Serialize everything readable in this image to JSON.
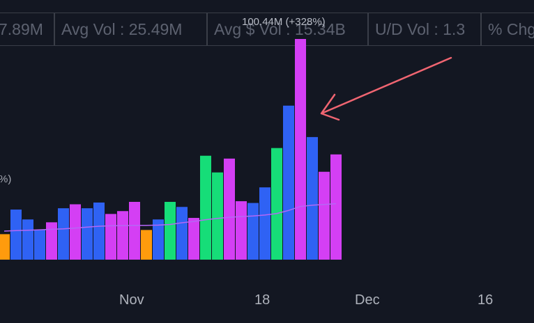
{
  "stats_bar": [
    {
      "text": "7.89M"
    },
    {
      "text": "Avg Vol : 25.49M"
    },
    {
      "text": "Avg $ Vol : 15.34B"
    },
    {
      "text": "U/D Vol : 1.3"
    },
    {
      "text": "% Chg"
    }
  ],
  "annotations": {
    "peak_label": "100.44M (+328%)",
    "left_partial": "%)"
  },
  "colors": {
    "background": "#131722",
    "green": "#16dd78",
    "blue": "#2f62f4",
    "magenta": "#d43ff4",
    "orange": "#ff9b0d",
    "avg_line": "#b667f5",
    "arrow": "#f06571"
  },
  "chart_data": {
    "type": "bar",
    "title": "",
    "xlabel": "",
    "ylabel": "",
    "x_ticks": [
      "Nov",
      "18",
      "Dec",
      "16"
    ],
    "ylim": [
      0,
      100.44
    ],
    "series": [
      {
        "values": [
          11.6,
          22.8,
          18.3,
          13.5,
          17.0,
          23.4,
          25.2,
          23.4,
          26.0,
          20.8,
          22.1,
          26.3,
          13.5,
          18.3,
          26.3,
          24.0,
          19.0,
          47.3,
          39.7,
          46.0,
          26.6,
          25.8,
          32.9,
          50.8,
          70.1,
          100.44,
          55.8,
          40.0,
          47.9
        ],
        "colors": [
          "orange",
          "blue",
          "blue",
          "blue",
          "magenta",
          "blue",
          "magenta",
          "blue",
          "blue",
          "magenta",
          "magenta",
          "magenta",
          "orange",
          "blue",
          "green",
          "blue",
          "magenta",
          "green",
          "green",
          "magenta",
          "magenta",
          "blue",
          "blue",
          "green",
          "blue",
          "magenta",
          "blue",
          "magenta",
          "magenta"
        ]
      },
      {
        "type": "line",
        "values": [
          13.0,
          13.2,
          13.4,
          13.6,
          13.8,
          14.0,
          14.4,
          14.8,
          15.2,
          15.4,
          15.5,
          15.6,
          15.6,
          15.7,
          16.0,
          16.8,
          17.4,
          18.2,
          18.8,
          19.3,
          19.6,
          19.9,
          20.3,
          21.0,
          22.4,
          24.2,
          24.8,
          25.1,
          25.49
        ]
      }
    ]
  }
}
